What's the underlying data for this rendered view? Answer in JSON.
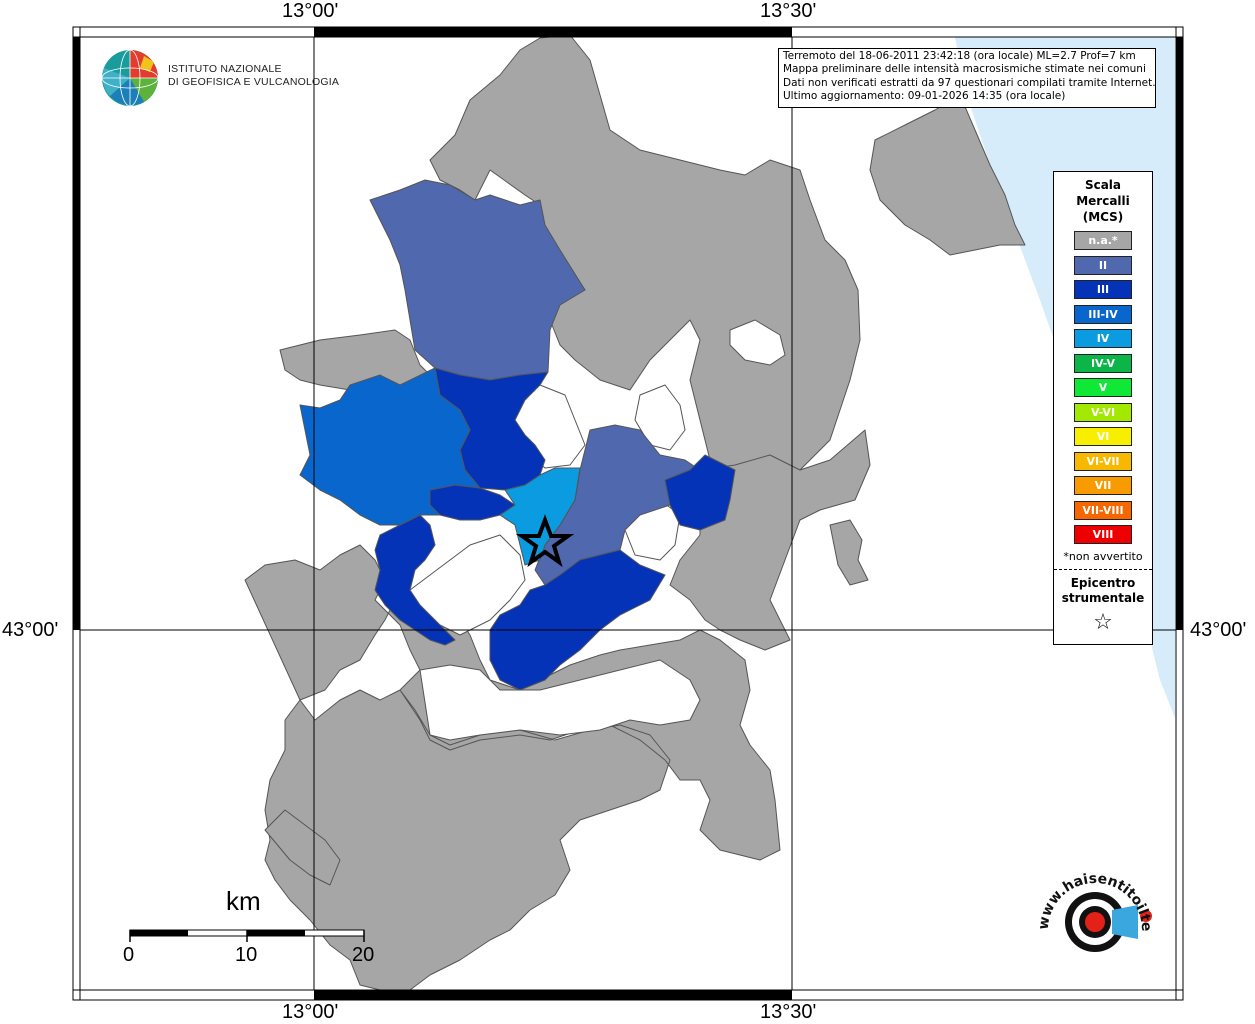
{
  "info_box": {
    "line1": "Terremoto del 18-06-2011 23:42:18 (ora locale) ML=2.7 Prof=7 km",
    "line2": "Mappa preliminare delle intensità macrosismiche stimate nei comuni",
    "line3": "Dati non verificati estratti da 97 questionari compilati tramite Internet.",
    "line4": "Ultimo aggiornamento: 09-01-2026 14:35 (ora locale)"
  },
  "coords": {
    "top_left": "13°00'",
    "top_right": "13°30'",
    "bottom_left": "13°00'",
    "bottom_right": "13°30'",
    "left_mid": "43°00'",
    "right_mid": "43°00'"
  },
  "logo": {
    "line1": "ISTITUTO NAZIONALE",
    "line2": "DI GEOFISICA E VULCANOLOGIA"
  },
  "legend": {
    "title_line1": "Scala",
    "title_line2": "Mercalli",
    "title_line3": "(MCS)",
    "items": [
      {
        "label": "n.a.*",
        "color": "#a6a6a6"
      },
      {
        "label": "II",
        "color": "#5068ad"
      },
      {
        "label": "III",
        "color": "#0433b8"
      },
      {
        "label": "III-IV",
        "color": "#0866cc"
      },
      {
        "label": "IV",
        "color": "#0a9be0"
      },
      {
        "label": "IV-V",
        "color": "#0bb547"
      },
      {
        "label": "V",
        "color": "#10e837"
      },
      {
        "label": "V-VI",
        "color": "#a3e800"
      },
      {
        "label": "VI",
        "color": "#f8ee00"
      },
      {
        "label": "VI-VII",
        "color": "#f8b800"
      },
      {
        "label": "VII",
        "color": "#f89b00"
      },
      {
        "label": "VII-VIII",
        "color": "#f86600"
      },
      {
        "label": "VIII",
        "color": "#ee0000"
      }
    ],
    "note": "*non avvertito",
    "epicentre_line1": "Epicentro",
    "epicentre_line2": "strumentale",
    "epicentre_symbol": "☆"
  },
  "scale_bar": {
    "unit": "km",
    "labels": [
      "0",
      "10",
      "20"
    ]
  },
  "hsit_logo": {
    "text": "www.haisentitoilterremoto.it"
  },
  "colors": {
    "sea": "#d6ecfb",
    "unfelt": "#a6a6a6",
    "border": "#555555"
  }
}
